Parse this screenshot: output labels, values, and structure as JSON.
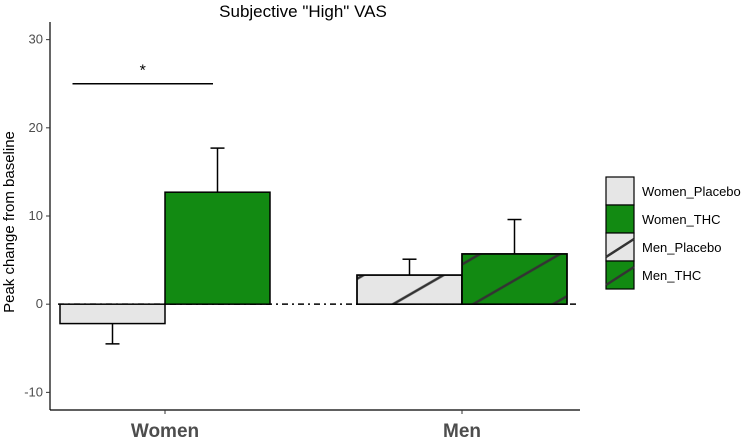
{
  "chart_data": {
    "type": "bar",
    "title": "Subjective \"High\" VAS",
    "xlabel": "",
    "ylabel": "Peak change from baseline",
    "ylim": [
      -12,
      32
    ],
    "yticks": [
      -10,
      0,
      10,
      20,
      30
    ],
    "categories": [
      "Women",
      "Men"
    ],
    "series": [
      {
        "name": "Women_Placebo",
        "category": "Women",
        "value": -2.2,
        "error_upper": -4.5,
        "fill": "#e6e6e6",
        "hatched": false
      },
      {
        "name": "Women_THC",
        "category": "Women",
        "value": 12.7,
        "error_upper": 17.7,
        "fill": "#128a12",
        "hatched": false
      },
      {
        "name": "Men_Placebo",
        "category": "Men",
        "value": 3.3,
        "error_upper": 5.1,
        "fill": "#e6e6e6",
        "hatched": true
      },
      {
        "name": "Men_THC",
        "category": "Men",
        "value": 5.7,
        "error_upper": 9.6,
        "fill": "#128a12",
        "hatched": true
      }
    ],
    "annotations": [
      {
        "text": "*",
        "between": [
          "Women_Placebo",
          "Women_THC"
        ],
        "y": 25
      }
    ],
    "reference_line": {
      "y": 0,
      "style": "dashed"
    },
    "legend_position": "right",
    "grid": false
  }
}
